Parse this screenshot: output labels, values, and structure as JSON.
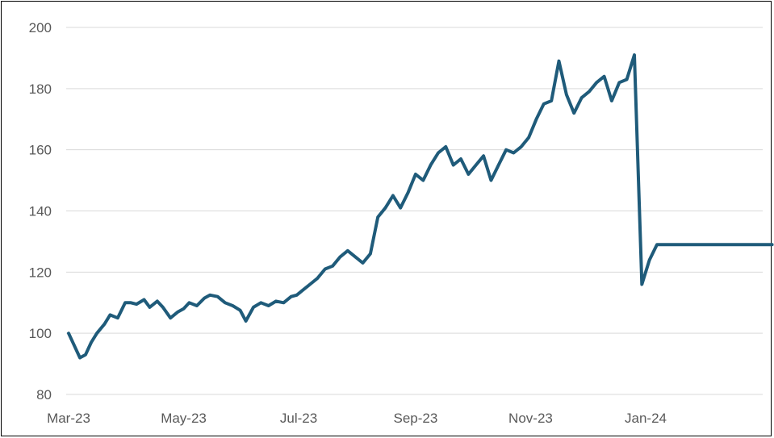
{
  "chart_data": {
    "type": "line",
    "title": "",
    "xlabel": "",
    "ylabel": "",
    "ylim": [
      80,
      200
    ],
    "y_ticks": [
      "80",
      "100",
      "120",
      "140",
      "160",
      "180",
      "200"
    ],
    "x_ticks": [
      "Mar-23",
      "May-23",
      "Jul-23",
      "Sep-23",
      "Nov-23",
      "Jan-24"
    ],
    "grid": true,
    "legend": "none",
    "line_color": "#1f5b7a",
    "series": [
      {
        "x": [
          "2023-03-01",
          "2023-03-04",
          "2023-03-07",
          "2023-03-10",
          "2023-03-13",
          "2023-03-16",
          "2023-03-20",
          "2023-03-23",
          "2023-03-27",
          "2023-03-31",
          "2023-04-03",
          "2023-04-06",
          "2023-04-10",
          "2023-04-13",
          "2023-04-17",
          "2023-04-20",
          "2023-04-24",
          "2023-04-28",
          "2023-05-01",
          "2023-05-04",
          "2023-05-08",
          "2023-05-12",
          "2023-05-15",
          "2023-05-19",
          "2023-05-23",
          "2023-05-27",
          "2023-05-31",
          "2023-06-03",
          "2023-06-07",
          "2023-06-11",
          "2023-06-15",
          "2023-06-19",
          "2023-06-23",
          "2023-06-27",
          "2023-06-30",
          "2023-07-03",
          "2023-07-07",
          "2023-07-11",
          "2023-07-15",
          "2023-07-19",
          "2023-07-23",
          "2023-07-27",
          "2023-07-31",
          "2023-08-04",
          "2023-08-08",
          "2023-08-12",
          "2023-08-16",
          "2023-08-20",
          "2023-08-24",
          "2023-08-28",
          "2023-09-01",
          "2023-09-05",
          "2023-09-09",
          "2023-09-13",
          "2023-09-17",
          "2023-09-21",
          "2023-09-25",
          "2023-09-29",
          "2023-10-03",
          "2023-10-07",
          "2023-10-11",
          "2023-10-15",
          "2023-10-19",
          "2023-10-23",
          "2023-10-27",
          "2023-10-31",
          "2023-11-04",
          "2023-11-08",
          "2023-11-12",
          "2023-11-16",
          "2023-11-20",
          "2023-11-24",
          "2023-11-28",
          "2023-12-02",
          "2023-12-06",
          "2023-12-10",
          "2023-12-14",
          "2023-12-18",
          "2023-12-22",
          "2023-12-26",
          "2023-12-30",
          "2024-01-03",
          "2024-01-07",
          "2024-01-11",
          "2024-01-15",
          "2024-01-19",
          "2024-01-23",
          "2024-01-27",
          "2024-01-31",
          "2024-02-04",
          "2024-02-08",
          "2024-02-12",
          "2024-02-16",
          "2024-02-20",
          "2024-02-24",
          "2024-02-27",
          "2024-03-01",
          "2024-03-05",
          "2024-03-08"
        ],
        "values": [
          100,
          96,
          92,
          93,
          97,
          100,
          103,
          106,
          105,
          110,
          110,
          109.5,
          111,
          108.5,
          110.5,
          108.5,
          105,
          107,
          108,
          110,
          109,
          111.5,
          112.5,
          112,
          110,
          109,
          107.5,
          104,
          108.5,
          110,
          109,
          110.5,
          110,
          112,
          112.5,
          114,
          116,
          118,
          121,
          122,
          125,
          127,
          125,
          123,
          126,
          138,
          141,
          145,
          141,
          146,
          152,
          150,
          155,
          159,
          161,
          155,
          157,
          152,
          155,
          158,
          150,
          155,
          160,
          159,
          161,
          164,
          170,
          175,
          176,
          189,
          178,
          172,
          177,
          179,
          182,
          184,
          176,
          182,
          183,
          191,
          116,
          124,
          129,
          129,
          129,
          129,
          129,
          129,
          129,
          129,
          129,
          129,
          129,
          129,
          129,
          129,
          129,
          129,
          129
        ]
      }
    ]
  }
}
